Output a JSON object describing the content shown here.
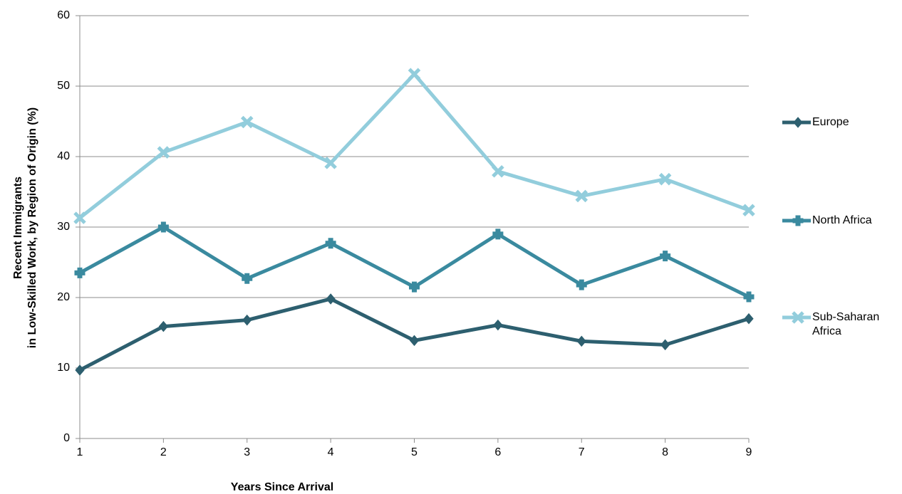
{
  "chart_data": {
    "type": "line",
    "xlabel": "Years Since Arrival",
    "ylabel": [
      "Recent Immigrants",
      "in Low-Skilled Work, by Region of Origin (%)"
    ],
    "x": [
      1,
      2,
      3,
      4,
      5,
      6,
      7,
      8,
      9
    ],
    "xlim": [
      1,
      9
    ],
    "xticks": [
      1,
      2,
      3,
      4,
      5,
      6,
      7,
      8,
      9
    ],
    "ylim": [
      0,
      60
    ],
    "yticks": [
      0,
      10,
      20,
      30,
      40,
      50,
      60
    ],
    "grid": true,
    "legend": "right",
    "series": [
      {
        "name": "Europe",
        "color": "#2d5f6f",
        "marker": "diamond",
        "values": [
          9.7,
          15.9,
          16.8,
          19.8,
          13.9,
          16.1,
          13.8,
          13.3,
          17.0
        ]
      },
      {
        "name": "North Africa",
        "color": "#3a8a9f",
        "marker": "plus",
        "values": [
          23.5,
          30.0,
          22.7,
          27.7,
          21.5,
          29.0,
          21.8,
          25.9,
          20.1
        ]
      },
      {
        "name": "Sub-Saharan Africa",
        "color": "#92cddc",
        "marker": "x",
        "values": [
          31.3,
          40.6,
          44.9,
          39.1,
          51.7,
          37.9,
          34.4,
          36.8,
          32.4
        ]
      }
    ]
  }
}
